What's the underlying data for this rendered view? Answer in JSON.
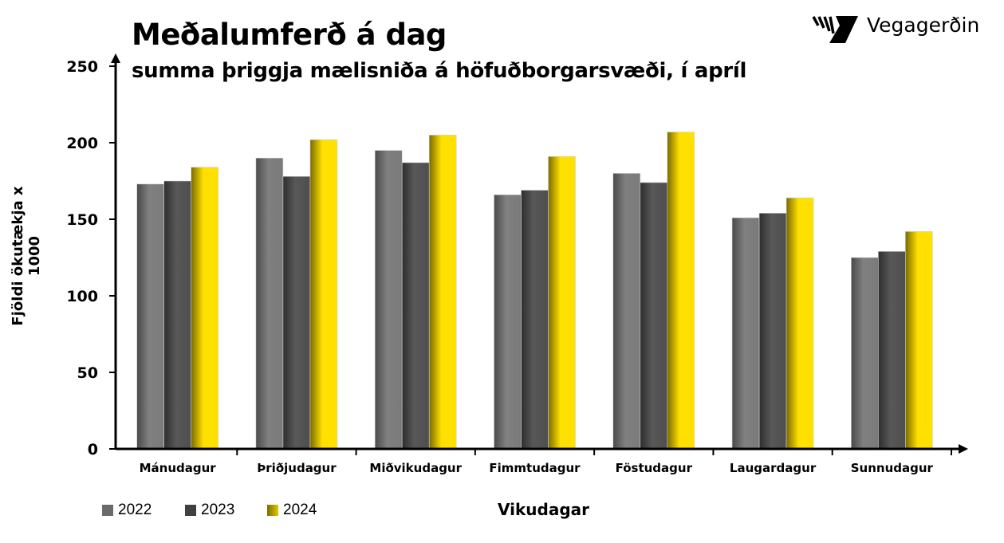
{
  "logo": {
    "text": "Vegagerðin"
  },
  "chart_data": {
    "type": "bar",
    "title": "Meðalumferð á dag",
    "subtitle": "summa þriggja mælisniða á höfuðborgarsvæði, í apríl",
    "xlabel": "Vikudagar",
    "ylabel": "Fjöldi ökutækja x 1000",
    "ylim": [
      0,
      250
    ],
    "yticks": [
      "0",
      "50",
      "100",
      "150",
      "200",
      "250"
    ],
    "grid": false,
    "legend": "bottom-left",
    "categories": [
      "Mánudagur",
      "Þriðjudagur",
      "Miðvikudagur",
      "Fimmtudagur",
      "Föstudagur",
      "Laugardagur",
      "Sunnudagur"
    ],
    "series": [
      {
        "name": "2022",
        "color": "#7a7a7a",
        "values": [
          173,
          190,
          195,
          166,
          180,
          151,
          125
        ]
      },
      {
        "name": "2023",
        "color": "#505050",
        "values": [
          175,
          178,
          187,
          169,
          174,
          154,
          129
        ]
      },
      {
        "name": "2024",
        "color": "#ffe000",
        "values": [
          184,
          202,
          205,
          191,
          207,
          164,
          142
        ]
      }
    ]
  }
}
